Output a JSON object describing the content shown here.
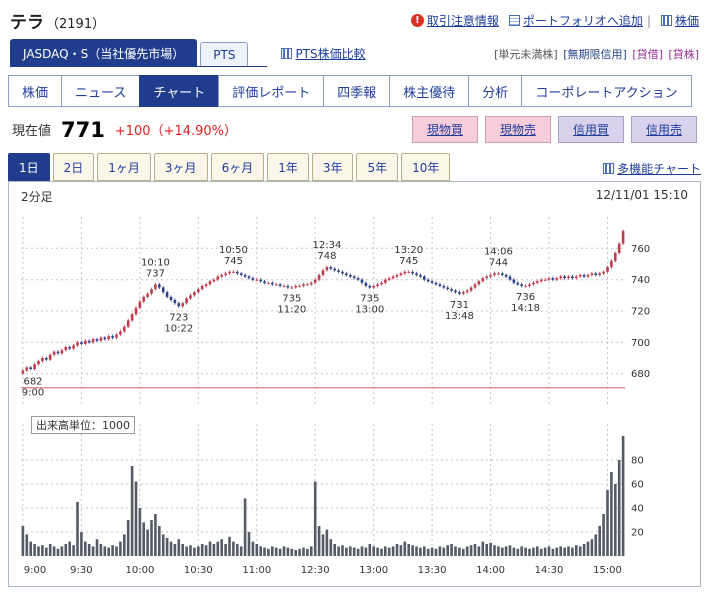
{
  "header": {
    "title": "テラ",
    "code": "（2191）",
    "links": [
      {
        "label": "取引注意情報",
        "icon": "alert-icon"
      },
      {
        "label": "ポートフォリオへ追加",
        "icon": "portfolio-add-icon"
      },
      {
        "label": "株価",
        "icon": "mini-chart-icon"
      }
    ]
  },
  "market": {
    "primary_tab": "JASDAQ・S（当社優先市場）",
    "pts_tab": "PTS",
    "compare_link": "PTS株価比較"
  },
  "badges": [
    {
      "label": "[単元未満株]",
      "color": "#555555"
    },
    {
      "label": "[無期限信用]",
      "color": "#224488"
    },
    {
      "label": "[貸借]",
      "color": "#993399"
    },
    {
      "label": "[貸株]",
      "color": "#993399"
    }
  ],
  "nav_tabs": [
    {
      "label": "株価"
    },
    {
      "label": "ニュース"
    },
    {
      "label": "チャート",
      "active": true
    },
    {
      "label": "評価レポート"
    },
    {
      "label": "四季報"
    },
    {
      "label": "株主優待"
    },
    {
      "label": "分析"
    },
    {
      "label": "コーポレートアクション"
    }
  ],
  "quote": {
    "label": "現在値",
    "price": "771",
    "change": "+100（+14.90%）"
  },
  "order_buttons": [
    {
      "label": "現物買",
      "style": "pink"
    },
    {
      "label": "現物売",
      "style": "pink"
    },
    {
      "label": "信用買",
      "style": "purple"
    },
    {
      "label": "信用売",
      "style": "purple"
    }
  ],
  "period_tabs": [
    {
      "label": "1日",
      "active": true
    },
    {
      "label": "2日"
    },
    {
      "label": "1ヶ月"
    },
    {
      "label": "3ヶ月"
    },
    {
      "label": "6ヶ月"
    },
    {
      "label": "1年"
    },
    {
      "label": "3年"
    },
    {
      "label": "5年"
    },
    {
      "label": "10年"
    }
  ],
  "multi_chart_link": "多機能チャート",
  "chart": {
    "interval_label": "2分足",
    "timestamp": "12/11/01 15:10",
    "volume_label": "出来高単位：1000"
  },
  "chart_data": {
    "type": "candlestick+volume",
    "title": "テラ（2191） 1日 2分足チャート",
    "x_tick_labels": [
      "9:00",
      "9:30",
      "10:00",
      "10:30",
      "11:00",
      "12:30",
      "13:00",
      "13:30",
      "14:00",
      "14:30",
      "15:00"
    ],
    "x_tick_indices": [
      0,
      15,
      30,
      45,
      60,
      75,
      90,
      105,
      120,
      135,
      150
    ],
    "price_axis": {
      "ticks": [
        680,
        700,
        720,
        740,
        760
      ],
      "range": [
        660,
        780
      ]
    },
    "volume_axis": {
      "ticks": [
        20,
        40,
        60,
        80
      ],
      "range": [
        0,
        110
      ],
      "unit": "1000"
    },
    "prev_close": 671,
    "colors": {
      "up": "#c23b4b",
      "down": "#2c3e87",
      "volume": "#555b66",
      "grid": "#c4c4c4",
      "prev_close": "#e06060"
    },
    "closes": [
      682,
      684,
      683,
      686,
      688,
      690,
      689,
      692,
      694,
      693,
      695,
      697,
      696,
      698,
      700,
      699,
      701,
      700,
      702,
      701,
      703,
      702,
      704,
      703,
      705,
      707,
      710,
      714,
      718,
      722,
      726,
      729,
      731,
      734,
      737,
      735,
      732,
      729,
      727,
      725,
      723,
      725,
      728,
      730,
      732,
      734,
      736,
      737,
      739,
      740,
      742,
      743,
      744,
      745,
      745,
      744,
      743,
      742,
      741,
      740,
      740,
      739,
      738,
      738,
      737,
      737,
      736,
      736,
      735,
      735,
      736,
      736,
      737,
      737,
      738,
      740,
      743,
      746,
      748,
      747,
      746,
      745,
      744,
      743,
      742,
      741,
      740,
      738,
      736,
      735,
      736,
      737,
      738,
      740,
      741,
      742,
      743,
      744,
      745,
      745,
      744,
      743,
      742,
      740,
      739,
      738,
      737,
      736,
      735,
      734,
      733,
      732,
      731,
      732,
      733,
      735,
      737,
      739,
      741,
      742,
      743,
      744,
      744,
      743,
      742,
      740,
      738,
      737,
      736,
      736,
      737,
      738,
      739,
      740,
      740,
      741,
      740,
      741,
      742,
      741,
      742,
      741,
      742,
      743,
      742,
      743,
      744,
      743,
      744,
      745,
      748,
      752,
      757,
      763,
      771
    ],
    "volumes": [
      25,
      18,
      12,
      10,
      8,
      9,
      7,
      10,
      8,
      6,
      8,
      10,
      12,
      9,
      45,
      20,
      12,
      10,
      8,
      14,
      10,
      8,
      7,
      9,
      8,
      12,
      18,
      30,
      75,
      62,
      40,
      28,
      22,
      30,
      35,
      25,
      18,
      15,
      12,
      10,
      14,
      10,
      8,
      9,
      7,
      8,
      10,
      9,
      12,
      10,
      12,
      14,
      10,
      16,
      12,
      10,
      8,
      48,
      20,
      12,
      10,
      8,
      7,
      6,
      8,
      7,
      6,
      8,
      7,
      6,
      5,
      6,
      7,
      6,
      8,
      62,
      25,
      18,
      22,
      14,
      10,
      8,
      9,
      7,
      8,
      7,
      6,
      8,
      7,
      10,
      8,
      7,
      6,
      8,
      7,
      8,
      10,
      9,
      12,
      10,
      9,
      8,
      7,
      8,
      6,
      7,
      6,
      8,
      7,
      9,
      10,
      8,
      7,
      6,
      8,
      9,
      10,
      8,
      12,
      10,
      11,
      9,
      8,
      7,
      8,
      9,
      7,
      6,
      8,
      7,
      6,
      7,
      8,
      6,
      7,
      8,
      6,
      7,
      8,
      7,
      8,
      7,
      9,
      8,
      10,
      12,
      14,
      18,
      25,
      35,
      55,
      70,
      60,
      80,
      100
    ],
    "annotations": [
      {
        "index": 0,
        "price": 682,
        "pos": "below",
        "lines": [
          "682",
          "9:00"
        ]
      },
      {
        "index": 34,
        "price": 737,
        "pos": "above",
        "lines": [
          "10:10",
          "737"
        ]
      },
      {
        "index": 40,
        "price": 723,
        "pos": "below",
        "lines": [
          "723",
          "10:22"
        ]
      },
      {
        "index": 54,
        "price": 745,
        "pos": "above",
        "lines": [
          "10:50",
          "745"
        ]
      },
      {
        "index": 69,
        "price": 735,
        "pos": "below",
        "lines": [
          "735",
          "11:20"
        ]
      },
      {
        "index": 78,
        "price": 748,
        "pos": "above",
        "lines": [
          "12:34",
          "748"
        ]
      },
      {
        "index": 89,
        "price": 735,
        "pos": "below",
        "lines": [
          "735",
          "13:00"
        ]
      },
      {
        "index": 99,
        "price": 745,
        "pos": "above",
        "lines": [
          "13:20",
          "745"
        ]
      },
      {
        "index": 112,
        "price": 731,
        "pos": "below",
        "lines": [
          "731",
          "13:48"
        ]
      },
      {
        "index": 122,
        "price": 744,
        "pos": "above",
        "lines": [
          "14:06",
          "744"
        ]
      },
      {
        "index": 129,
        "price": 736,
        "pos": "below",
        "lines": [
          "736",
          "14:18"
        ]
      }
    ]
  }
}
